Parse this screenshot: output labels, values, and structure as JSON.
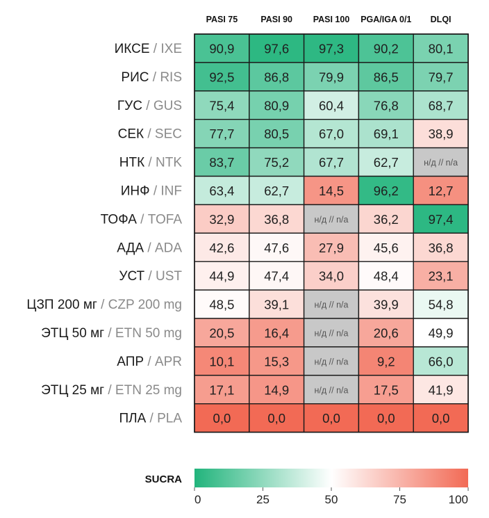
{
  "chart_data": {
    "type": "heatmap",
    "title": "",
    "columns": [
      "PASI 75",
      "PASI 90",
      "PASI 100",
      "PGA/IGA 0/1",
      "DLQI"
    ],
    "rows": [
      {
        "ru": "ИКСЕ",
        "en": "IXE"
      },
      {
        "ru": "РИС",
        "en": "RIS"
      },
      {
        "ru": "ГУС",
        "en": "GUS"
      },
      {
        "ru": "СЕК",
        "en": "SEC"
      },
      {
        "ru": "НТК",
        "en": "NTK"
      },
      {
        "ru": "ИНФ",
        "en": "INF"
      },
      {
        "ru": "ТОФА",
        "en": "TOFA"
      },
      {
        "ru": "АДА",
        "en": "ADA"
      },
      {
        "ru": "УСТ",
        "en": "UST"
      },
      {
        "ru": "ЦЗП 200 мг",
        "en": "CZP 200 mg"
      },
      {
        "ru": "ЭТЦ 50 мг",
        "en": "ETN 50 mg"
      },
      {
        "ru": "АПР",
        "en": "APR"
      },
      {
        "ru": "ЭТЦ 25 мг",
        "en": "ETN 25 mg"
      },
      {
        "ru": "ПЛА",
        "en": "PLA"
      }
    ],
    "values": [
      [
        90.9,
        97.6,
        97.3,
        90.2,
        80.1
      ],
      [
        92.5,
        86.8,
        79.9,
        86.5,
        79.7
      ],
      [
        75.4,
        80.9,
        60.4,
        76.8,
        68.7
      ],
      [
        77.7,
        80.5,
        67.0,
        69.1,
        38.9
      ],
      [
        83.7,
        75.2,
        67.7,
        62.7,
        null
      ],
      [
        63.4,
        62.7,
        14.5,
        96.2,
        12.7
      ],
      [
        32.9,
        36.8,
        null,
        36.2,
        97.4
      ],
      [
        42.6,
        47.6,
        27.9,
        45.6,
        36.8
      ],
      [
        44.9,
        47.4,
        34.0,
        48.4,
        23.1
      ],
      [
        48.5,
        39.1,
        null,
        39.9,
        54.8
      ],
      [
        20.5,
        16.4,
        null,
        20.6,
        49.9
      ],
      [
        10.1,
        15.3,
        null,
        9.2,
        66.0
      ],
      [
        17.1,
        14.9,
        null,
        17.5,
        41.9
      ],
      [
        0.0,
        0.0,
        0.0,
        0.0,
        0.0
      ]
    ],
    "display": [
      [
        "90,9",
        "97,6",
        "97,3",
        "90,2",
        "80,1"
      ],
      [
        "92,5",
        "86,8",
        "79,9",
        "86,5",
        "79,7"
      ],
      [
        "75,4",
        "80,9",
        "60,4",
        "76,8",
        "68,7"
      ],
      [
        "77,7",
        "80,5",
        "67,0",
        "69,1",
        "38,9"
      ],
      [
        "83,7",
        "75,2",
        "67,7",
        "62,7",
        "н/д // n/a"
      ],
      [
        "63,4",
        "62,7",
        "14,5",
        "96,2",
        "12,7"
      ],
      [
        "32,9",
        "36,8",
        "н/д // n/a",
        "36,2",
        "97,4"
      ],
      [
        "42,6",
        "47,6",
        "27,9",
        "45,6",
        "36,8"
      ],
      [
        "44,9",
        "47,4",
        "34,0",
        "48,4",
        "23,1"
      ],
      [
        "48,5",
        "39,1",
        "н/д // n/a",
        "39,9",
        "54,8"
      ],
      [
        "20,5",
        "16,4",
        "н/д // n/a",
        "20,6",
        "49,9"
      ],
      [
        "10,1",
        "15,3",
        "н/д // n/a",
        "9,2",
        "66,0"
      ],
      [
        "17,1",
        "14,9",
        "н/д // n/a",
        "17,5",
        "41,9"
      ],
      [
        "0,0",
        "0,0",
        "0,0",
        "0,0",
        "0,0"
      ]
    ],
    "colorbar": {
      "label": "SUCRA",
      "ticks": [
        "0",
        "25",
        "50",
        "75",
        "100"
      ],
      "range": [
        0,
        100
      ],
      "direction": "reversed",
      "low_color": "#f26a55",
      "mid_color": "#ffffff",
      "high_color": "#22b47c",
      "na_color": "#c8c8c8"
    }
  }
}
